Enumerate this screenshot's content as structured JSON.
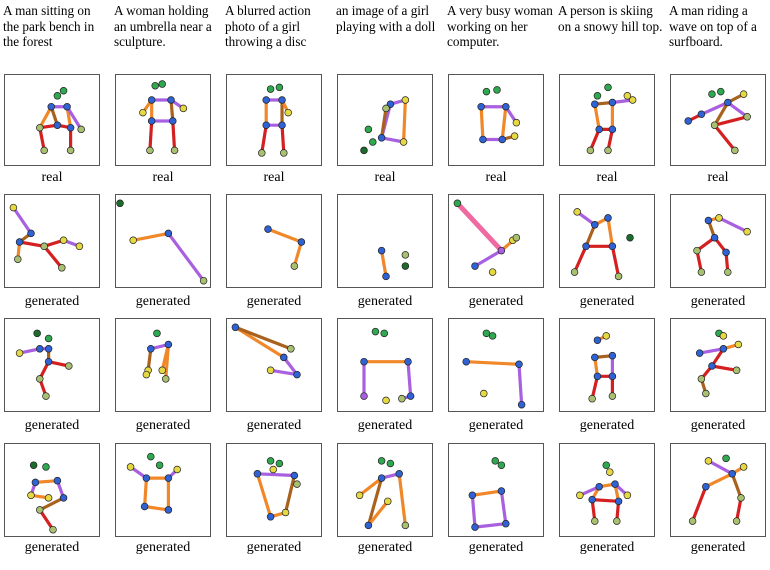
{
  "captions": [
    "A man sitting on the park bench in the forest",
    "A woman holding an umbrella near a sculpture.",
    "A blurred action photo of a girl throwing a disc",
    "an image of a girl playing with a doll",
    "A very busy woman working on her computer.",
    "A person is skiing on a snowy hill top.",
    "A man riding a wave on top of a surfboard."
  ],
  "row_labels": [
    "real",
    "generated",
    "generated",
    "generated"
  ],
  "colors": {
    "head": "#2fa84f",
    "blue_joint": "#2f62d4",
    "yellow_joint": "#e6d843",
    "olive_joint": "#a8c070",
    "dark_green": "#1d6b2a",
    "red": "#d42020",
    "dark_red": "#a01818",
    "orange": "#f0882a",
    "brown": "#a8621e",
    "purple": "#a860e0",
    "pink": "#ee6aa0"
  },
  "icons": {
    "pose": "stick-figure-skeleton"
  }
}
